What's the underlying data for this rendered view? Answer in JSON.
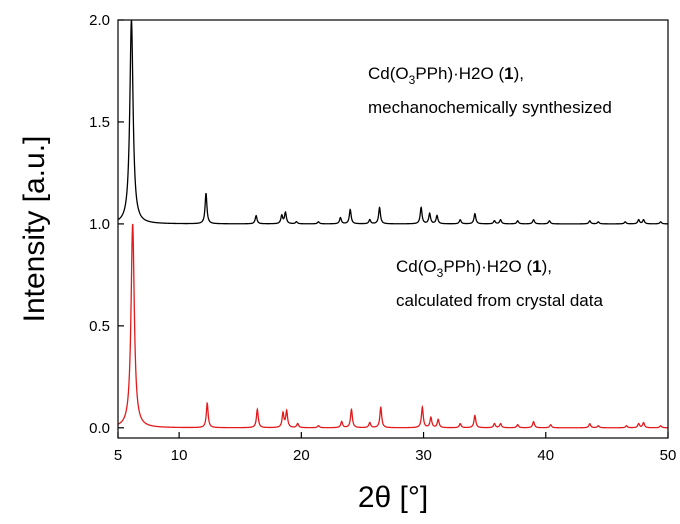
{
  "chart_data": {
    "type": "line",
    "title": "",
    "xlabel": "2θ [°]",
    "ylabel": "Intensity [a.u.]",
    "xlim": [
      5,
      50
    ],
    "ylim": [
      -0.05,
      2.0
    ],
    "xticks": [
      5,
      10,
      20,
      30,
      40,
      50
    ],
    "yticks": [
      0.0,
      0.5,
      1.0,
      1.5,
      2.0
    ],
    "ytick_labels": [
      "0.0",
      "0.5",
      "1.0",
      "1.5",
      "2.0"
    ],
    "grid": false,
    "series": [
      {
        "color": "#000000",
        "baseline": 1.0,
        "peaks": [
          {
            "x": 6.1,
            "y": 2.0
          },
          {
            "x": 12.2,
            "y": 1.15
          },
          {
            "x": 16.3,
            "y": 1.04
          },
          {
            "x": 18.4,
            "y": 1.04
          },
          {
            "x": 18.7,
            "y": 1.055
          },
          {
            "x": 19.6,
            "y": 1.01
          },
          {
            "x": 21.4,
            "y": 1.01
          },
          {
            "x": 23.2,
            "y": 1.03
          },
          {
            "x": 24.0,
            "y": 1.07
          },
          {
            "x": 25.6,
            "y": 1.02
          },
          {
            "x": 26.4,
            "y": 1.08
          },
          {
            "x": 29.8,
            "y": 1.08
          },
          {
            "x": 30.5,
            "y": 1.05
          },
          {
            "x": 31.1,
            "y": 1.04
          },
          {
            "x": 33.0,
            "y": 1.02
          },
          {
            "x": 34.2,
            "y": 1.05
          },
          {
            "x": 35.8,
            "y": 1.015
          },
          {
            "x": 36.3,
            "y": 1.02
          },
          {
            "x": 37.7,
            "y": 1.015
          },
          {
            "x": 39.0,
            "y": 1.02
          },
          {
            "x": 40.3,
            "y": 1.015
          },
          {
            "x": 43.6,
            "y": 1.015
          },
          {
            "x": 44.3,
            "y": 1.01
          },
          {
            "x": 46.5,
            "y": 1.01
          },
          {
            "x": 47.6,
            "y": 1.02
          },
          {
            "x": 48.0,
            "y": 1.02
          },
          {
            "x": 49.4,
            "y": 1.01
          }
        ]
      },
      {
        "color": "#e31a1c",
        "baseline": 0.0,
        "peaks": [
          {
            "x": 6.2,
            "y": 1.0
          },
          {
            "x": 12.3,
            "y": 0.12
          },
          {
            "x": 16.4,
            "y": 0.09
          },
          {
            "x": 18.5,
            "y": 0.07
          },
          {
            "x": 18.8,
            "y": 0.08
          },
          {
            "x": 19.7,
            "y": 0.02
          },
          {
            "x": 21.4,
            "y": 0.01
          },
          {
            "x": 23.3,
            "y": 0.03
          },
          {
            "x": 24.1,
            "y": 0.09
          },
          {
            "x": 25.6,
            "y": 0.025
          },
          {
            "x": 26.5,
            "y": 0.1
          },
          {
            "x": 29.9,
            "y": 0.1
          },
          {
            "x": 30.6,
            "y": 0.05
          },
          {
            "x": 31.2,
            "y": 0.04
          },
          {
            "x": 33.0,
            "y": 0.02
          },
          {
            "x": 34.2,
            "y": 0.06
          },
          {
            "x": 35.8,
            "y": 0.02
          },
          {
            "x": 36.3,
            "y": 0.02
          },
          {
            "x": 37.7,
            "y": 0.015
          },
          {
            "x": 39.0,
            "y": 0.03
          },
          {
            "x": 40.4,
            "y": 0.015
          },
          {
            "x": 43.6,
            "y": 0.02
          },
          {
            "x": 44.3,
            "y": 0.01
          },
          {
            "x": 46.6,
            "y": 0.01
          },
          {
            "x": 47.6,
            "y": 0.02
          },
          {
            "x": 48.0,
            "y": 0.025
          },
          {
            "x": 49.4,
            "y": 0.01
          }
        ]
      }
    ],
    "annotations": [
      {
        "formula_prefix": "Cd(O",
        "formula_sub": "3",
        "formula_mid": "PPh)·H2O (",
        "formula_num": "1",
        "formula_suffix": "),",
        "line2": "mechanochemically synthesized"
      },
      {
        "formula_prefix": "Cd(O",
        "formula_sub": "3",
        "formula_mid": "PPh)·H2O (",
        "formula_num": "1",
        "formula_suffix": "),",
        "line2": "calculated from crystal data"
      }
    ]
  }
}
